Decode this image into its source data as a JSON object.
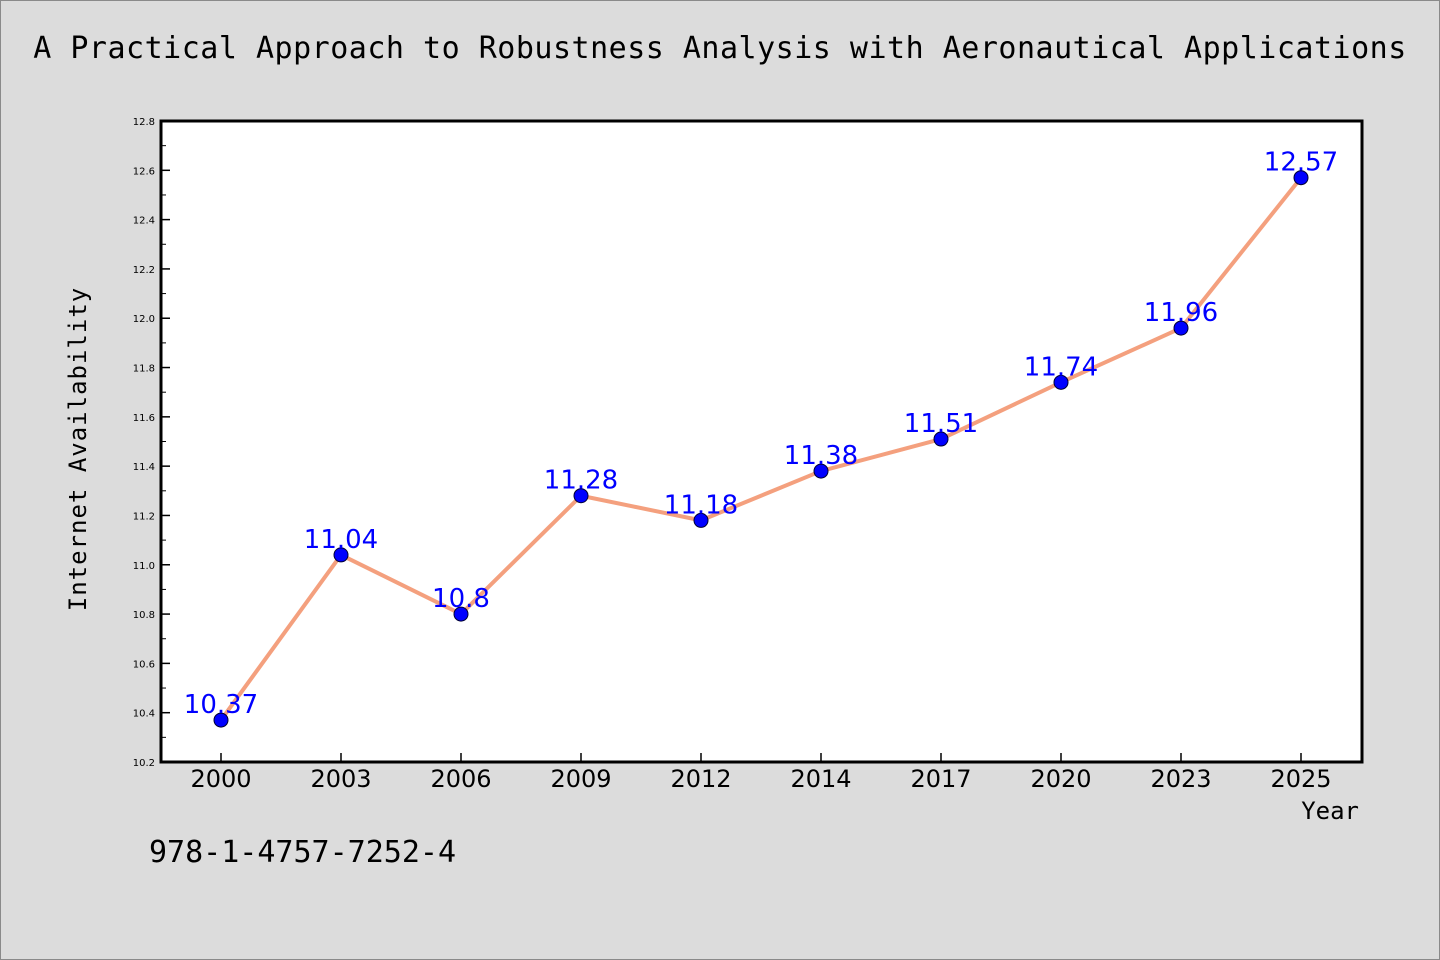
{
  "chart_data": {
    "type": "line",
    "title": "A Practical Approach to Robustness Analysis with Aeronautical Applications",
    "xlabel": "Year",
    "ylabel": "Internet Availability",
    "categories": [
      "2000",
      "2003",
      "2006",
      "2009",
      "2012",
      "2014",
      "2017",
      "2020",
      "2023",
      "2025"
    ],
    "values": [
      10.37,
      11.04,
      10.8,
      11.28,
      11.18,
      11.38,
      11.51,
      11.74,
      11.96,
      12.57
    ],
    "data_labels": [
      "10.37",
      "11.04",
      "10.8",
      "11.28",
      "11.18",
      "11.38",
      "11.51",
      "11.74",
      "11.96",
      "12.57"
    ],
    "ylim": [
      10.2,
      12.8
    ],
    "yticks": [
      "10.2",
      "10.4",
      "10.6",
      "10.8",
      "11.0",
      "11.2",
      "11.4",
      "11.6",
      "11.8",
      "12.0",
      "12.2",
      "12.4",
      "12.6",
      "12.8"
    ],
    "grid": false,
    "legend": "none",
    "line_color": "#f4a07e",
    "marker_color": "#0000ff",
    "label_color": "#0000ff"
  },
  "footnote": "978-1-4757-7252-4"
}
